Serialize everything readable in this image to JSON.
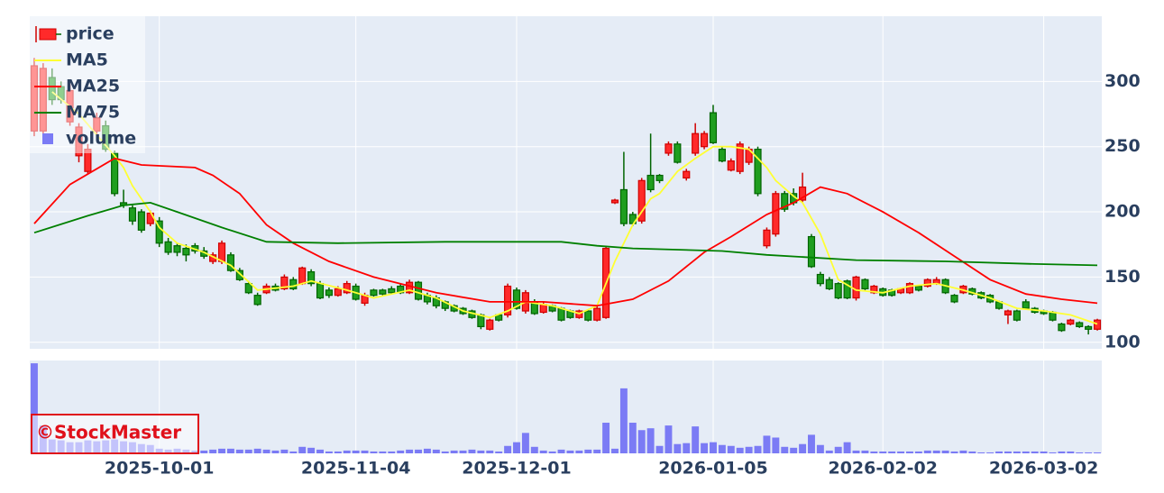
{
  "chart_data": {
    "type": "candlestick",
    "categories": [
      "2025-09-09",
      "2025-09-10",
      "2025-09-11",
      "2025-09-12",
      "2025-09-16",
      "2025-09-17",
      "2025-09-18",
      "2025-09-19",
      "2025-09-22",
      "2025-09-24",
      "2025-09-25",
      "2025-09-26",
      "2025-09-29",
      "2025-09-30",
      "2025-10-01",
      "2025-10-02",
      "2025-10-03",
      "2025-10-06",
      "2025-10-07",
      "2025-10-08",
      "2025-10-09",
      "2025-10-10",
      "2025-10-14",
      "2025-10-15",
      "2025-10-16",
      "2025-10-17",
      "2025-10-20",
      "2025-10-21",
      "2025-10-22",
      "2025-10-23",
      "2025-10-24",
      "2025-10-27",
      "2025-10-28",
      "2025-10-29",
      "2025-10-30",
      "2025-10-31",
      "2025-11-04",
      "2025-11-05",
      "2025-11-06",
      "2025-11-07",
      "2025-11-10",
      "2025-11-11",
      "2025-11-12",
      "2025-11-13",
      "2025-11-14",
      "2025-11-17",
      "2025-11-18",
      "2025-11-19",
      "2025-11-20",
      "2025-11-21",
      "2025-11-25",
      "2025-11-26",
      "2025-11-27",
      "2025-11-28",
      "2025-12-01",
      "2025-12-02",
      "2025-12-03",
      "2025-12-04",
      "2025-12-05",
      "2025-12-08",
      "2025-12-09",
      "2025-12-10",
      "2025-12-11",
      "2025-12-12",
      "2025-12-15",
      "2025-12-16",
      "2025-12-17",
      "2025-12-18",
      "2025-12-19",
      "2025-12-22",
      "2025-12-23",
      "2025-12-24",
      "2025-12-25",
      "2025-12-26",
      "2025-12-29",
      "2025-12-30",
      "2026-01-05",
      "2026-01-06",
      "2026-01-07",
      "2026-01-08",
      "2026-01-09",
      "2026-01-13",
      "2026-01-14",
      "2026-01-15",
      "2026-01-16",
      "2026-01-19",
      "2026-01-20",
      "2026-01-21",
      "2026-01-22",
      "2026-01-23",
      "2026-01-26",
      "2026-01-27",
      "2026-01-28",
      "2026-01-29",
      "2026-01-30",
      "2026-02-02",
      "2026-02-03",
      "2026-02-04",
      "2026-02-05",
      "2026-02-06",
      "2026-02-09",
      "2026-02-10",
      "2026-02-12",
      "2026-02-13",
      "2026-02-16",
      "2026-02-17",
      "2026-02-18",
      "2026-02-19",
      "2026-02-20",
      "2026-02-24",
      "2026-02-25",
      "2026-02-26",
      "2026-02-27",
      "2026-03-02",
      "2026-03-03",
      "2026-03-04",
      "2026-03-05",
      "2026-03-06",
      "2026-03-09",
      "2026-03-10"
    ],
    "series": [
      {
        "name": "price",
        "type": "candlestick",
        "increasing_color": "#1f9e1f",
        "increasing_line": "#006400",
        "decreasing_color": "#ff2a2a",
        "decreasing_line": "#d00000",
        "open": [
          312,
          310,
          286,
          286,
          293,
          265,
          248,
          272,
          248,
          214,
          205,
          193,
          186,
          199,
          176,
          169,
          169,
          167,
          170,
          166,
          167,
          176,
          155,
          148,
          138,
          129,
          143,
          140,
          150,
          141,
          157,
          145,
          134,
          136,
          141,
          145,
          133,
          136,
          136,
          137,
          138,
          138,
          146,
          133,
          131,
          128,
          126,
          124,
          122,
          119,
          112,
          117,
          117,
          143,
          126,
          138,
          122,
          129,
          124,
          117,
          119,
          124,
          117,
          126,
          172,
          209,
          191,
          191,
          224,
          217,
          224,
          252,
          238,
          231,
          260,
          260,
          253,
          239,
          239,
          252,
          248,
          214,
          186,
          214,
          202,
          207,
          219,
          158,
          145,
          141,
          134,
          134,
          150,
          141,
          143,
          136,
          136,
          141,
          145,
          140,
          148,
          148,
          138,
          131,
          143,
          137,
          134,
          131,
          126,
          124,
          117,
          126,
          123,
          122,
          117,
          109,
          117,
          112,
          110,
          117
        ],
        "high": [
          318,
          314,
          310,
          300,
          298,
          268,
          252,
          276,
          270,
          247,
          217,
          205,
          202,
          201,
          196,
          180,
          176,
          175,
          176,
          173,
          169,
          178,
          169,
          157,
          147,
          138,
          145,
          145,
          152,
          150,
          158,
          156,
          147,
          142,
          143,
          147,
          145,
          138,
          141,
          141,
          143,
          145,
          148,
          147,
          138,
          136,
          132,
          129,
          127,
          125,
          122,
          118,
          122,
          145,
          142,
          140,
          133,
          131,
          129,
          127,
          125,
          125,
          125,
          128,
          174,
          210,
          246,
          200,
          226,
          260,
          229,
          254,
          254,
          233,
          268,
          262,
          282,
          250,
          241,
          254,
          250,
          250,
          188,
          216,
          216,
          218,
          230,
          183,
          154,
          150,
          146,
          148,
          151,
          149,
          144,
          142,
          141,
          142,
          146,
          144,
          149,
          150,
          149,
          137,
          144,
          142,
          139,
          137,
          132,
          125,
          125,
          133,
          127,
          125,
          124,
          115,
          118,
          116,
          113,
          118
        ],
        "low": [
          258,
          258,
          282,
          283,
          266,
          238,
          229,
          258,
          246,
          212,
          203,
          190,
          184,
          189,
          173,
          167,
          166,
          162,
          168,
          164,
          160,
          160,
          154,
          147,
          137,
          128,
          137,
          139,
          140,
          140,
          144,
          143,
          133,
          134,
          135,
          137,
          132,
          128,
          135,
          136,
          137,
          137,
          137,
          132,
          129,
          126,
          124,
          123,
          121,
          118,
          110,
          109,
          116,
          119,
          125,
          122,
          121,
          122,
          123,
          116,
          118,
          118,
          116,
          116,
          118,
          206,
          189,
          189,
          191,
          215,
          222,
          243,
          237,
          224,
          243,
          248,
          252,
          238,
          231,
          229,
          236,
          212,
          172,
          181,
          200,
          205,
          207,
          157,
          143,
          140,
          133,
          133,
          132,
          140,
          137,
          135,
          135,
          137,
          137,
          139,
          142,
          144,
          137,
          130,
          137,
          136,
          133,
          130,
          125,
          114,
          116,
          125,
          122,
          121,
          116,
          108,
          113,
          111,
          106,
          109
        ],
        "close": [
          262,
          262,
          303,
          296,
          269,
          243,
          231,
          262,
          266,
          245,
          207,
          203,
          200,
          191,
          193,
          177,
          174,
          172,
          174,
          170,
          162,
          162,
          167,
          155,
          145,
          136,
          138,
          143,
          141,
          148,
          145,
          154,
          145,
          140,
          136,
          138,
          143,
          130,
          140,
          140,
          141,
          143,
          138,
          146,
          136,
          134,
          131,
          128,
          126,
          124,
          121,
          110,
          121,
          121,
          140,
          124,
          131,
          123,
          128,
          126,
          124,
          119,
          124,
          117,
          119,
          207,
          217,
          198,
          193,
          228,
          228,
          245,
          252,
          226,
          245,
          250,
          276,
          248,
          232,
          231,
          238,
          248,
          174,
          183,
          214,
          214,
          209,
          181,
          152,
          148,
          145,
          147,
          134,
          148,
          138,
          141,
          140,
          138,
          138,
          143,
          143,
          145,
          148,
          136,
          138,
          141,
          138,
          136,
          131,
          121,
          124,
          131,
          126,
          124,
          123,
          114,
          114,
          115,
          112,
          110
        ]
      },
      {
        "name": "MA5",
        "type": "line",
        "color": "#ffff33",
        "x": [
          "2025-09-11",
          "2025-09-17",
          "2025-09-24",
          "2025-09-25",
          "2025-09-26",
          "2025-09-30",
          "2025-10-01",
          "2025-10-03",
          "2025-10-08",
          "2025-10-14",
          "2025-10-17",
          "2025-10-23",
          "2025-10-27",
          "2025-10-31",
          "2025-11-06",
          "2025-11-12",
          "2025-11-17",
          "2025-11-20",
          "2025-11-26",
          "2025-11-28",
          "2025-12-02",
          "2025-12-05",
          "2025-12-10",
          "2025-12-12",
          "2025-12-16",
          "2025-12-18",
          "2025-12-22",
          "2025-12-23",
          "2025-12-25",
          "2025-12-29",
          "2026-01-05",
          "2026-01-07",
          "2026-01-09",
          "2026-01-14",
          "2026-01-15",
          "2026-01-19",
          "2026-01-20",
          "2026-01-22",
          "2026-01-26",
          "2026-01-28",
          "2026-02-02",
          "2026-02-05",
          "2026-02-10",
          "2026-02-16",
          "2026-02-19",
          "2026-02-25",
          "2026-03-02",
          "2026-03-05",
          "2026-03-10"
        ],
        "values": [
          292,
          275,
          243,
          234,
          220,
          200,
          188,
          176,
          169,
          159,
          140,
          143,
          147,
          140,
          134,
          140,
          134,
          124,
          119,
          124,
          131,
          128,
          122,
          128,
          162,
          190,
          210,
          214,
          231,
          241,
          250,
          250,
          248,
          234,
          224,
          212,
          207,
          183,
          148,
          140,
          138,
          143,
          145,
          140,
          134,
          126,
          124,
          121,
          114
        ]
      },
      {
        "name": "MA25",
        "type": "line",
        "color": "#ff0000",
        "x": [
          "2025-09-09",
          "2025-09-16",
          "2025-09-24",
          "2025-09-29",
          "2025-10-07",
          "2025-10-09",
          "2025-10-15",
          "2025-10-20",
          "2025-10-23",
          "2025-10-29",
          "2025-11-06",
          "2025-11-17",
          "2025-11-26",
          "2025-12-04",
          "2025-12-12",
          "2025-12-18",
          "2025-12-24",
          "2025-12-30",
          "2026-01-07",
          "2026-01-14",
          "2026-01-19",
          "2026-01-22",
          "2026-01-27",
          "2026-02-02",
          "2026-02-06",
          "2026-02-13",
          "2026-02-19",
          "2026-02-26",
          "2026-03-04",
          "2026-03-10"
        ],
        "values": [
          191,
          221,
          241,
          236,
          234,
          228,
          214,
          190,
          176,
          162,
          150,
          138,
          131,
          131,
          128,
          133,
          147,
          169,
          181,
          198,
          207,
          219,
          214,
          200,
          184,
          166,
          148,
          137,
          133,
          130
        ]
      },
      {
        "name": "MA75",
        "type": "line",
        "color": "#008000",
        "x": [
          "2025-09-09",
          "2025-09-18",
          "2025-09-25",
          "2025-09-30",
          "2025-10-03",
          "2025-10-10",
          "2025-10-20",
          "2025-10-30",
          "2025-11-18",
          "2025-12-08",
          "2025-12-12",
          "2025-12-18",
          "2026-01-06",
          "2026-01-14",
          "2026-01-28",
          "2026-02-12",
          "2026-02-27",
          "2026-03-10"
        ],
        "values": [
          184,
          197,
          205,
          207,
          200,
          188,
          177,
          176,
          177,
          177,
          174,
          172,
          170,
          167,
          163,
          162,
          160,
          159
        ]
      },
      {
        "name": "volume",
        "type": "bar",
        "axis": "y2",
        "color": "#7b7bf5",
        "values": [
          97,
          30,
          15,
          14,
          12,
          12,
          14,
          13,
          14,
          15,
          13,
          12,
          10,
          9,
          5,
          4,
          5,
          4,
          3,
          3,
          4,
          5,
          5,
          4,
          4,
          5,
          4,
          3,
          4,
          2,
          7,
          6,
          4,
          2,
          2,
          3,
          3,
          3,
          2,
          2,
          2,
          3,
          4,
          4,
          5,
          4,
          2,
          3,
          3,
          4,
          3,
          3,
          2,
          8,
          12,
          22,
          7,
          3,
          2,
          4,
          3,
          3,
          4,
          4,
          33,
          5,
          70,
          33,
          25,
          27,
          8,
          30,
          10,
          11,
          29,
          11,
          12,
          9,
          8,
          6,
          7,
          8,
          19,
          17,
          7,
          6,
          10,
          20,
          9,
          3,
          7,
          12,
          3,
          3,
          2,
          2,
          2,
          2,
          2,
          2,
          3,
          3,
          3,
          2,
          3,
          2,
          1,
          1,
          2,
          2,
          2,
          2,
          2,
          2,
          1,
          2,
          2,
          1,
          1,
          1
        ]
      }
    ],
    "xticks": [
      "2025-10-01",
      "2025-11-04",
      "2025-12-01",
      "2026-01-05",
      "2026-02-02",
      "2026-03-02"
    ],
    "ylim": [
      95,
      350
    ],
    "yticks": [
      100,
      150,
      200,
      250,
      300
    ],
    "y2lim": [
      0,
      100
    ],
    "grid": true,
    "legend": "top-left",
    "watermark": "©StockMaster"
  }
}
